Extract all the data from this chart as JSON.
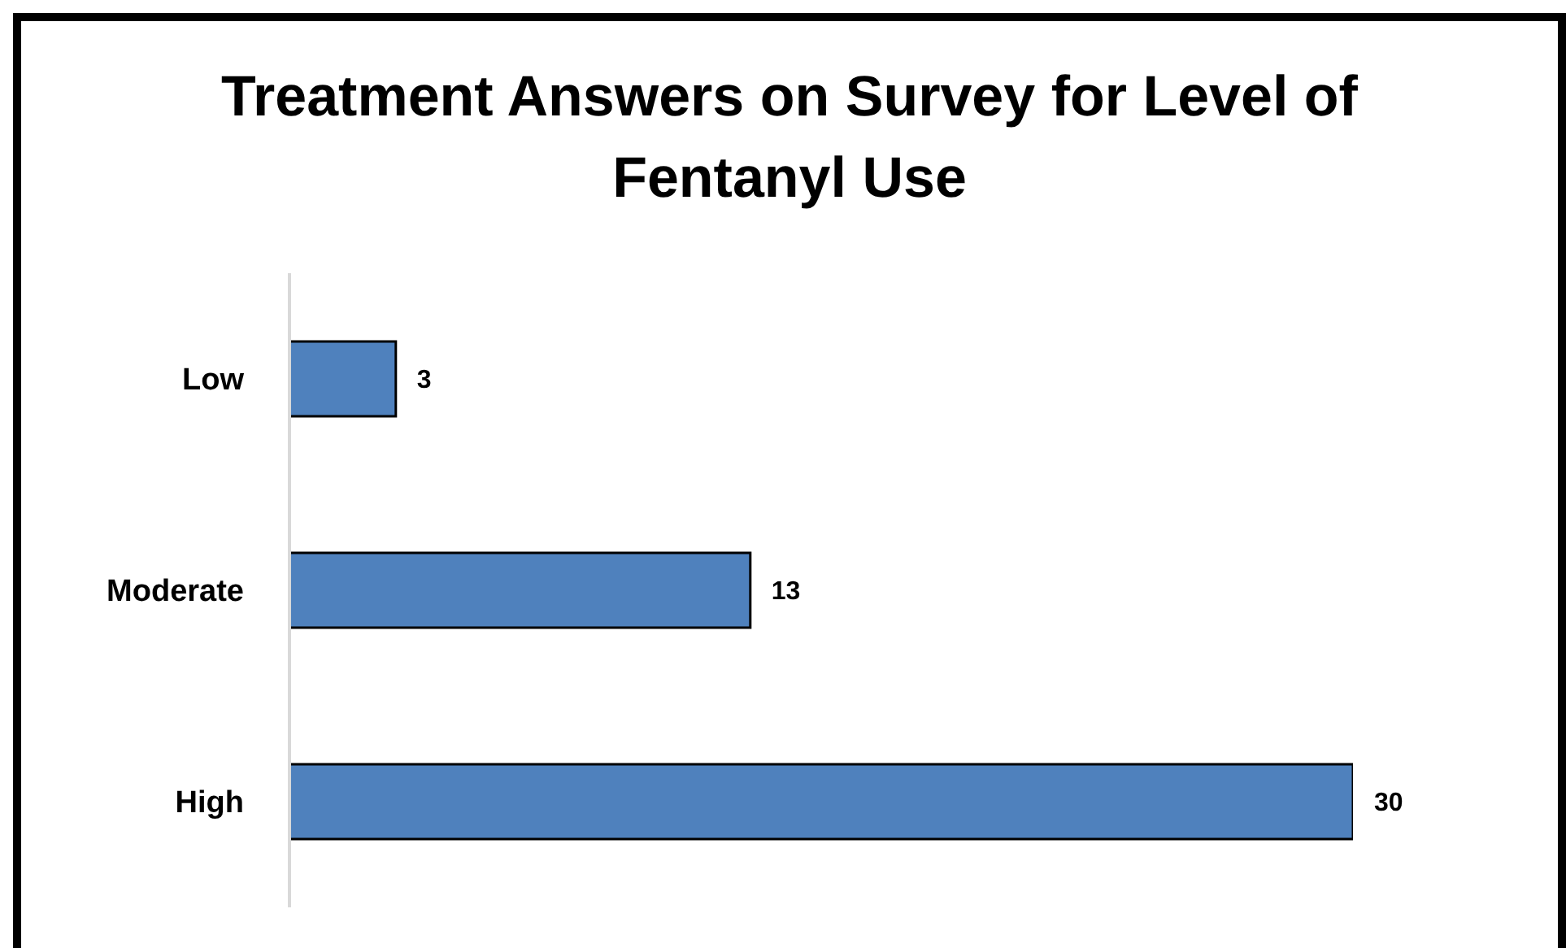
{
  "chart_data": {
    "type": "bar",
    "title": "Treatment Answers on Survey for Level of Fentanyl Use",
    "orientation": "horizontal",
    "categories": [
      "Low",
      "Moderate",
      "High"
    ],
    "values": [
      3,
      13,
      30
    ],
    "color": "#4f81bd",
    "data_labels": true,
    "tick_labels": "y"
  }
}
